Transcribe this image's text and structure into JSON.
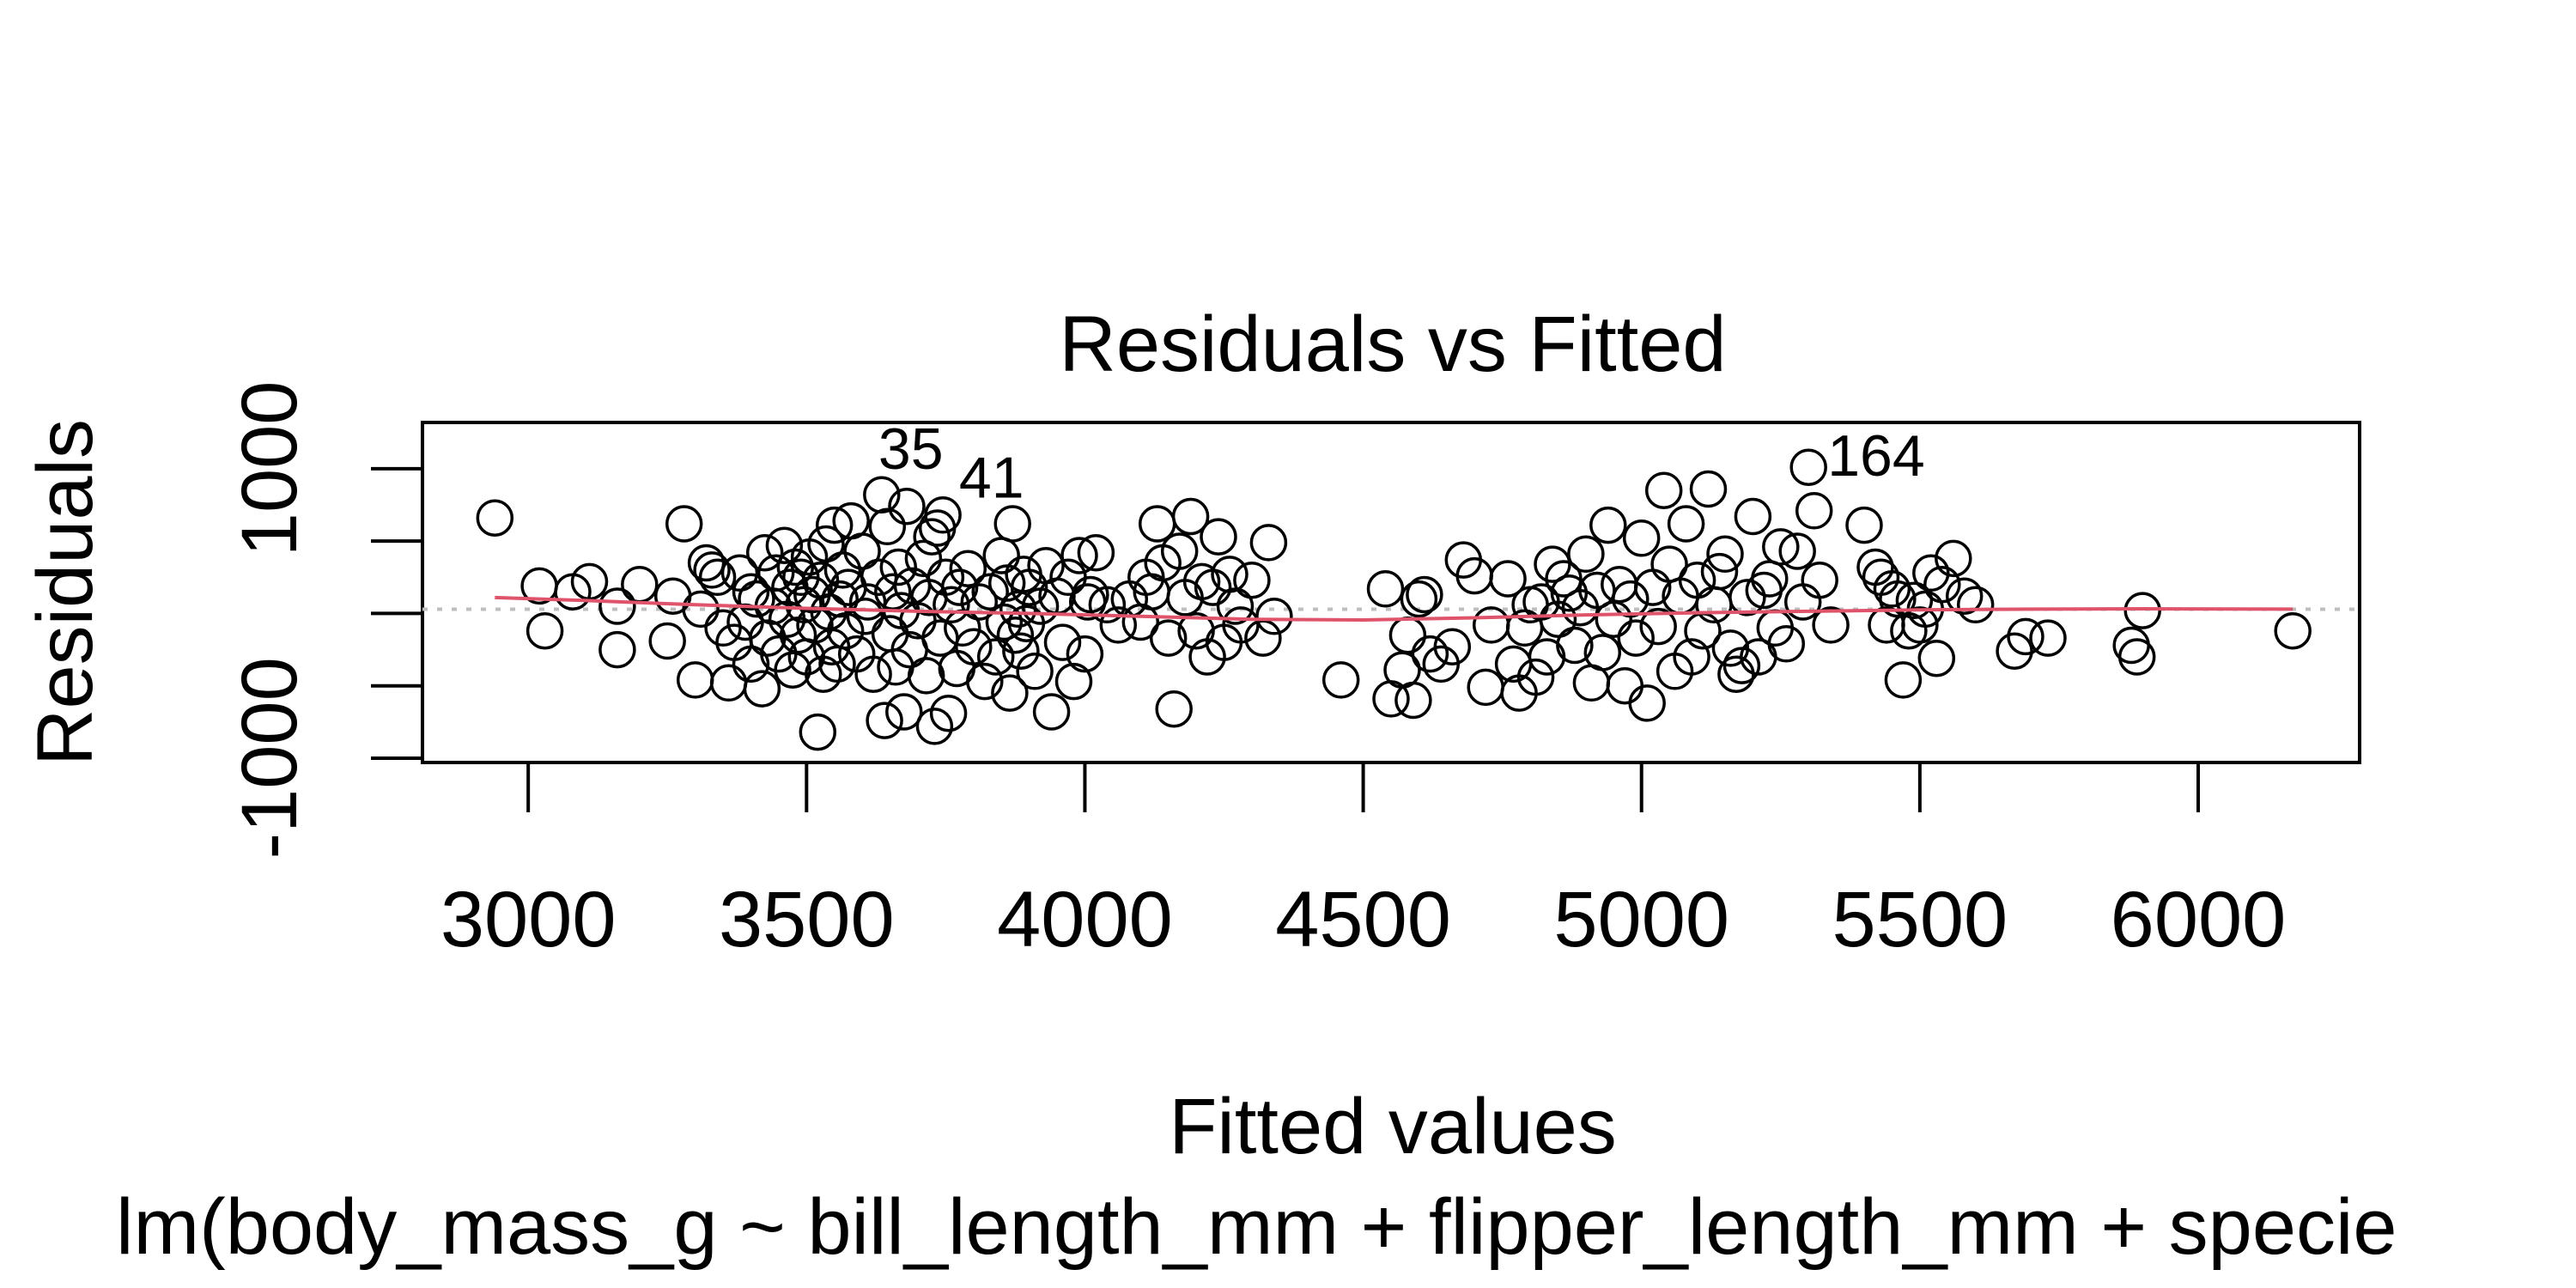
{
  "chart_data": {
    "type": "scatter",
    "title": "Residuals vs Fitted",
    "xlabel": "Fitted values",
    "ylabel": "Residuals",
    "subtitle": "lm(body_mass_g ~ bill_length_mm + flipper_length_mm + specie",
    "xlim": [
      2810,
      6290
    ],
    "ylim": [
      -1030,
      1320
    ],
    "x_ticks": [
      3000,
      3500,
      4000,
      4500,
      5000,
      5500,
      6000
    ],
    "x_tick_labels": [
      "3000",
      "3500",
      "4000",
      "4500",
      "5000",
      "5500",
      "6000"
    ],
    "y_ticks": [
      -1000,
      -500,
      0,
      500,
      1000
    ],
    "y_tick_labels": [
      "-1000",
      "",
      "",
      "",
      "1000"
    ],
    "reference_line": {
      "y": 0,
      "style": "dotted",
      "color": "#bebebe"
    },
    "smooth_color": "#df536b",
    "point_style": "open-circle",
    "smooth": [
      [
        2940,
        110
      ],
      [
        3100,
        90
      ],
      [
        3300,
        60
      ],
      [
        3500,
        35
      ],
      [
        3700,
        15
      ],
      [
        3900,
        0
      ],
      [
        4100,
        -20
      ],
      [
        4300,
        -40
      ],
      [
        4500,
        -45
      ],
      [
        4700,
        -30
      ],
      [
        4900,
        -10
      ],
      [
        5100,
        5
      ],
      [
        5300,
        15
      ],
      [
        5500,
        25
      ],
      [
        5700,
        30
      ],
      [
        5900,
        32
      ],
      [
        6170,
        30
      ]
    ],
    "labeled_points": [
      {
        "label": "35",
        "x": 3595,
        "y": 1060
      },
      {
        "label": "41",
        "x": 3740,
        "y": 860
      },
      {
        "label": "164",
        "x": 5300,
        "y": 1010
      }
    ],
    "points": [
      [
        2940,
        660
      ],
      [
        3020,
        190
      ],
      [
        3030,
        -120
      ],
      [
        3080,
        150
      ],
      [
        3110,
        220
      ],
      [
        3160,
        -250
      ],
      [
        3160,
        50
      ],
      [
        3200,
        200
      ],
      [
        3250,
        -190
      ],
      [
        3260,
        120
      ],
      [
        3280,
        620
      ],
      [
        3300,
        -460
      ],
      [
        3310,
        30
      ],
      [
        3320,
        350
      ],
      [
        3330,
        300
      ],
      [
        3340,
        250
      ],
      [
        3350,
        -100
      ],
      [
        3360,
        -480
      ],
      [
        3370,
        -200
      ],
      [
        3380,
        280
      ],
      [
        3390,
        -60
      ],
      [
        3400,
        -350
      ],
      [
        3400,
        150
      ],
      [
        3410,
        100
      ],
      [
        3420,
        -520
      ],
      [
        3425,
        420
      ],
      [
        3430,
        -170
      ],
      [
        3440,
        50
      ],
      [
        3445,
        280
      ],
      [
        3450,
        -280
      ],
      [
        3460,
        470
      ],
      [
        3465,
        -40
      ],
      [
        3470,
        180
      ],
      [
        3475,
        -390
      ],
      [
        3480,
        320
      ],
      [
        3485,
        -150
      ],
      [
        3490,
        250
      ],
      [
        3495,
        60
      ],
      [
        3500,
        -300
      ],
      [
        3505,
        390
      ],
      [
        3510,
        130
      ],
      [
        3515,
        -80
      ],
      [
        3520,
        -820
      ],
      [
        3525,
        230
      ],
      [
        3530,
        -420
      ],
      [
        3535,
        480
      ],
      [
        3540,
        10
      ],
      [
        3545,
        -230
      ],
      [
        3550,
        610
      ],
      [
        3555,
        -350
      ],
      [
        3560,
        100
      ],
      [
        3565,
        300
      ],
      [
        3570,
        -120
      ],
      [
        3575,
        180
      ],
      [
        3580,
        640
      ],
      [
        3590,
        -280
      ],
      [
        3600,
        430
      ],
      [
        3605,
        -20
      ],
      [
        3610,
        80
      ],
      [
        3620,
        -420
      ],
      [
        3630,
        250
      ],
      [
        3635,
        820
      ],
      [
        3640,
        -740
      ],
      [
        3645,
        600
      ],
      [
        3650,
        -140
      ],
      [
        3655,
        150
      ],
      [
        3660,
        -370
      ],
      [
        3665,
        320
      ],
      [
        3670,
        20
      ],
      [
        3675,
        -680
      ],
      [
        3680,
        740
      ],
      [
        3685,
        -250
      ],
      [
        3690,
        190
      ],
      [
        3700,
        -50
      ],
      [
        3710,
        380
      ],
      [
        3715,
        -430
      ],
      [
        3720,
        110
      ],
      [
        3725,
        530
      ],
      [
        3730,
        -780
      ],
      [
        3735,
        590
      ],
      [
        3740,
        -170
      ],
      [
        3745,
        680
      ],
      [
        3750,
        250
      ],
      [
        3755,
        -690
      ],
      [
        3760,
        60
      ],
      [
        3770,
        -380
      ],
      [
        3775,
        180
      ],
      [
        3780,
        -100
      ],
      [
        3790,
        310
      ],
      [
        3800,
        -230
      ],
      [
        3810,
        80
      ],
      [
        3820,
        -470
      ],
      [
        3830,
        150
      ],
      [
        3840,
        -300
      ],
      [
        3850,
        400
      ],
      [
        3855,
        -60
      ],
      [
        3860,
        210
      ],
      [
        3865,
        -550
      ],
      [
        3870,
        620
      ],
      [
        3875,
        -150
      ],
      [
        3880,
        30
      ],
      [
        3885,
        -260
      ],
      [
        3890,
        270
      ],
      [
        3895,
        -70
      ],
      [
        3900,
        180
      ],
      [
        3910,
        -400
      ],
      [
        3920,
        50
      ],
      [
        3930,
        330
      ],
      [
        3940,
        -680
      ],
      [
        3950,
        120
      ],
      [
        3960,
        -200
      ],
      [
        3970,
        250
      ],
      [
        3980,
        -470
      ],
      [
        3990,
        400
      ],
      [
        4000,
        -280
      ],
      [
        4005,
        80
      ],
      [
        4010,
        130
      ],
      [
        4020,
        420
      ],
      [
        4040,
        60
      ],
      [
        4060,
        -80
      ],
      [
        4080,
        100
      ],
      [
        4100,
        -60
      ],
      [
        4110,
        250
      ],
      [
        4120,
        150
      ],
      [
        4130,
        620
      ],
      [
        4140,
        350
      ],
      [
        4150,
        -170
      ],
      [
        4160,
        -660
      ],
      [
        4170,
        430
      ],
      [
        4180,
        110
      ],
      [
        4190,
        670
      ],
      [
        4200,
        -120
      ],
      [
        4210,
        220
      ],
      [
        4220,
        -300
      ],
      [
        4230,
        180
      ],
      [
        4240,
        530
      ],
      [
        4250,
        -200
      ],
      [
        4260,
        270
      ],
      [
        4270,
        50
      ],
      [
        4280,
        -80
      ],
      [
        4300,
        230
      ],
      [
        4320,
        -170
      ],
      [
        4330,
        490
      ],
      [
        4340,
        -20
      ],
      [
        4460,
        -460
      ],
      [
        4540,
        170
      ],
      [
        4550,
        -590
      ],
      [
        4570,
        -390
      ],
      [
        4580,
        -150
      ],
      [
        4590,
        -600
      ],
      [
        4600,
        100
      ],
      [
        4610,
        130
      ],
      [
        4620,
        -280
      ],
      [
        4640,
        -350
      ],
      [
        4660,
        -230
      ],
      [
        4680,
        370
      ],
      [
        4700,
        260
      ],
      [
        4720,
        -510
      ],
      [
        4730,
        -80
      ],
      [
        4760,
        240
      ],
      [
        4770,
        -350
      ],
      [
        4780,
        -550
      ],
      [
        4790,
        -100
      ],
      [
        4800,
        60
      ],
      [
        4810,
        -440
      ],
      [
        4820,
        80
      ],
      [
        4830,
        -300
      ],
      [
        4840,
        340
      ],
      [
        4850,
        -40
      ],
      [
        4860,
        240
      ],
      [
        4870,
        140
      ],
      [
        4880,
        -220
      ],
      [
        4890,
        40
      ],
      [
        4900,
        410
      ],
      [
        4910,
        -480
      ],
      [
        4920,
        160
      ],
      [
        4930,
        -270
      ],
      [
        4940,
        610
      ],
      [
        4950,
        -40
      ],
      [
        4960,
        200
      ],
      [
        4970,
        -500
      ],
      [
        4980,
        100
      ],
      [
        4990,
        -170
      ],
      [
        5000,
        520
      ],
      [
        5010,
        -620
      ],
      [
        5020,
        180
      ],
      [
        5030,
        -90
      ],
      [
        5040,
        850
      ],
      [
        5050,
        340
      ],
      [
        5060,
        -400
      ],
      [
        5070,
        120
      ],
      [
        5080,
        620
      ],
      [
        5090,
        -300
      ],
      [
        5100,
        230
      ],
      [
        5110,
        -120
      ],
      [
        5120,
        860
      ],
      [
        5130,
        60
      ],
      [
        5140,
        290
      ],
      [
        5150,
        410
      ],
      [
        5160,
        -240
      ],
      [
        5170,
        -420
      ],
      [
        5180,
        -360
      ],
      [
        5190,
        110
      ],
      [
        5200,
        670
      ],
      [
        5210,
        -300
      ],
      [
        5220,
        160
      ],
      [
        5230,
        240
      ],
      [
        5240,
        -100
      ],
      [
        5250,
        460
      ],
      [
        5260,
        -210
      ],
      [
        5280,
        430
      ],
      [
        5290,
        80
      ],
      [
        5300,
        1010
      ],
      [
        5310,
        710
      ],
      [
        5320,
        230
      ],
      [
        5340,
        -80
      ],
      [
        5400,
        610
      ],
      [
        5420,
        320
      ],
      [
        5430,
        250
      ],
      [
        5440,
        -80
      ],
      [
        5450,
        170
      ],
      [
        5460,
        100
      ],
      [
        5470,
        -460
      ],
      [
        5480,
        -120
      ],
      [
        5490,
        90
      ],
      [
        5500,
        -80
      ],
      [
        5510,
        30
      ],
      [
        5520,
        280
      ],
      [
        5530,
        -310
      ],
      [
        5540,
        200
      ],
      [
        5560,
        380
      ],
      [
        5580,
        120
      ],
      [
        5600,
        60
      ],
      [
        5670,
        -260
      ],
      [
        5690,
        -160
      ],
      [
        5730,
        -170
      ],
      [
        5880,
        -220
      ],
      [
        5890,
        -300
      ],
      [
        5900,
        20
      ],
      [
        6170,
        -120
      ]
    ]
  }
}
